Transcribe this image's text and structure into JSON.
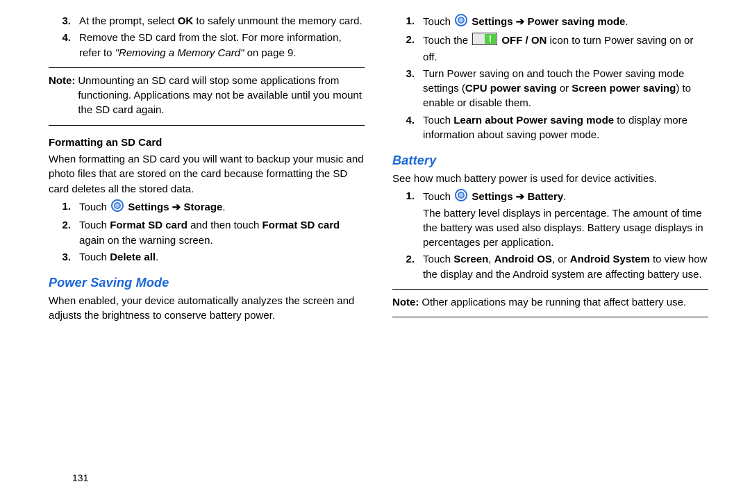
{
  "colors": {
    "text": "#000000",
    "blueHeading": "#1a66d6",
    "iconOuter": "#2b6ed8",
    "iconInner": "#a6c6f5",
    "toggleFrame": "#333333",
    "toggleFill": "#4fd03f",
    "ruleColor": "#000000",
    "background": "#ffffff"
  },
  "fonts": {
    "baseSize": 15,
    "blueHeadingSize": 18,
    "subheadSize": 15,
    "lineHeight": 1.42
  },
  "left": {
    "steps_top": [
      {
        "num": "3.",
        "parts": [
          {
            "t": "At the prompt, select "
          },
          {
            "t": "OK",
            "bold": true
          },
          {
            "t": " to safely unmount the memory card."
          }
        ]
      },
      {
        "num": "4.",
        "parts": [
          {
            "t": "Remove the SD card from the slot. For more information, refer to "
          },
          {
            "t": "\"Removing a Memory Card\"",
            "italic": true
          },
          {
            "t": " on page 9."
          }
        ]
      }
    ],
    "note1": "Unmounting an SD card will stop some applications from functioning. Applications may not be available until you mount the SD card again.",
    "format_heading": "Formatting an SD Card",
    "format_intro": "When formatting an SD card you will want to backup your music and photo files that are stored on the card because formatting the SD card deletes all the stored data.",
    "format_steps": [
      {
        "num": "1.",
        "parts": [
          {
            "t": "Touch "
          },
          {
            "icon": "settings"
          },
          {
            "t": " "
          },
          {
            "t": "Settings",
            "bold": true
          },
          {
            "t": " "
          },
          {
            "arrow": true
          },
          {
            "t": " "
          },
          {
            "t": "Storage",
            "bold": true
          },
          {
            "t": "."
          }
        ]
      },
      {
        "num": "2.",
        "parts": [
          {
            "t": "Touch "
          },
          {
            "t": "Format SD card",
            "bold": true
          },
          {
            "t": " and then touch "
          },
          {
            "t": "Format SD card",
            "bold": true
          },
          {
            "t": " again on the warning screen."
          }
        ]
      },
      {
        "num": "3.",
        "parts": [
          {
            "t": "Touch "
          },
          {
            "t": "Delete all",
            "bold": true
          },
          {
            "t": "."
          }
        ]
      }
    ],
    "power_heading": "Power Saving Mode",
    "power_intro": "When enabled, your device automatically analyzes the screen and adjusts the brightness to conserve battery power."
  },
  "right": {
    "power_steps": [
      {
        "num": "1.",
        "parts": [
          {
            "t": "Touch "
          },
          {
            "icon": "settings"
          },
          {
            "t": " "
          },
          {
            "t": "Settings",
            "bold": true
          },
          {
            "t": " "
          },
          {
            "arrow": true
          },
          {
            "t": " "
          },
          {
            "t": "Power saving mode",
            "bold": true
          },
          {
            "t": "."
          }
        ]
      },
      {
        "num": "2.",
        "parts": [
          {
            "t": "Touch the "
          },
          {
            "icon": "toggle"
          },
          {
            "t": " "
          },
          {
            "t": "OFF / ON",
            "bold": true
          },
          {
            "t": " icon to turn Power saving on or off."
          }
        ]
      },
      {
        "num": "3.",
        "parts": [
          {
            "t": "Turn Power saving on and touch the Power saving mode settings ("
          },
          {
            "t": "CPU power saving",
            "bold": true
          },
          {
            "t": " or "
          },
          {
            "t": "Screen power saving",
            "bold": true
          },
          {
            "t": ") to enable or disable them."
          }
        ]
      },
      {
        "num": "4.",
        "parts": [
          {
            "t": "Touch "
          },
          {
            "t": "Learn about Power saving mode",
            "bold": true
          },
          {
            "t": " to display more information about saving power mode."
          }
        ]
      }
    ],
    "battery_heading": "Battery",
    "battery_intro": "See how much battery power is used for device activities.",
    "battery_steps": [
      {
        "num": "1.",
        "parts": [
          {
            "t": "Touch "
          },
          {
            "icon": "settings"
          },
          {
            "t": " "
          },
          {
            "t": "Settings",
            "bold": true
          },
          {
            "t": " "
          },
          {
            "arrow": true
          },
          {
            "t": " "
          },
          {
            "t": "Battery",
            "bold": true
          },
          {
            "t": "."
          },
          {
            "br": true
          },
          {
            "t": "The battery level displays in percentage. The amount of time the battery was used also displays. Battery usage displays in percentages per application."
          }
        ]
      },
      {
        "num": "2.",
        "parts": [
          {
            "t": "Touch "
          },
          {
            "t": "Screen",
            "bold": true
          },
          {
            "t": ", "
          },
          {
            "t": "Android OS",
            "bold": true
          },
          {
            "t": ", or "
          },
          {
            "t": "Android System",
            "bold": true
          },
          {
            "t": "   to view how the display and the Android system are affecting battery use."
          }
        ]
      }
    ],
    "note2": "Other applications may be running that affect battery use."
  },
  "noteLabel": "Note:",
  "arrowGlyph": "➔",
  "pageNumber": "131"
}
